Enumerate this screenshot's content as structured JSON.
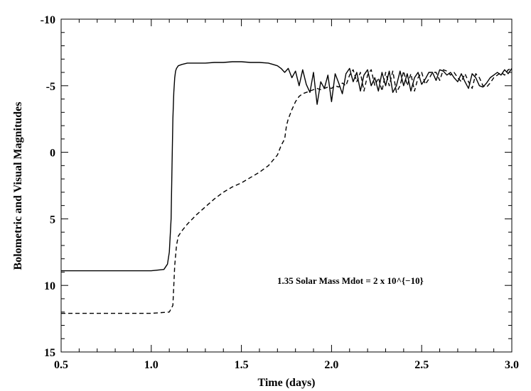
{
  "chart_data": {
    "type": "line",
    "title": "",
    "xlabel": "Time (days)",
    "ylabel": "Bolometric and Visual Magnitudes",
    "xlim": [
      0.5,
      3.0
    ],
    "ylim": [
      15,
      -10
    ],
    "y_inverted": true,
    "grid": false,
    "x_ticks": [
      "0.5",
      "1.0",
      "1.5",
      "2.0",
      "2.5",
      "3.0"
    ],
    "y_ticks": [
      "-10",
      "-5",
      "0",
      "5",
      "10",
      "15"
    ],
    "annotation": "1.35 Solar Mass  Mdot = 2 x 10^{−10}",
    "series": [
      {
        "style": "solid",
        "x": [
          0.5,
          0.8,
          1.0,
          1.07,
          1.09,
          1.1,
          1.11,
          1.115,
          1.12,
          1.125,
          1.13,
          1.135,
          1.14,
          1.15,
          1.17,
          1.2,
          1.25,
          1.3,
          1.35,
          1.4,
          1.45,
          1.5,
          1.55,
          1.6,
          1.65,
          1.7,
          1.72,
          1.74,
          1.76,
          1.78,
          1.8,
          1.82,
          1.84,
          1.86,
          1.88,
          1.9,
          1.92,
          1.94,
          1.96,
          1.98,
          2.0,
          2.02,
          2.04,
          2.06,
          2.08,
          2.1,
          2.12,
          2.14,
          2.16,
          2.18,
          2.2,
          2.22,
          2.24,
          2.26,
          2.28,
          2.3,
          2.32,
          2.34,
          2.36,
          2.38,
          2.4,
          2.42,
          2.44,
          2.46,
          2.48,
          2.5,
          2.52,
          2.54,
          2.56,
          2.58,
          2.6,
          2.62,
          2.64,
          2.66,
          2.68,
          2.7,
          2.72,
          2.74,
          2.76,
          2.78,
          2.8,
          2.82,
          2.84,
          2.86,
          2.88,
          2.9,
          2.92,
          2.94,
          2.96,
          2.98,
          3.0
        ],
        "y": [
          8.9,
          8.9,
          8.9,
          8.8,
          8.4,
          7.5,
          5.0,
          1.0,
          -2.5,
          -4.5,
          -5.6,
          -6.1,
          -6.3,
          -6.5,
          -6.6,
          -6.7,
          -6.7,
          -6.7,
          -6.75,
          -6.75,
          -6.8,
          -6.8,
          -6.75,
          -6.75,
          -6.7,
          -6.5,
          -6.3,
          -6.0,
          -6.3,
          -5.6,
          -6.1,
          -5.0,
          -6.2,
          -5.1,
          -4.5,
          -6.0,
          -3.6,
          -5.3,
          -4.8,
          -5.8,
          -3.8,
          -5.9,
          -5.2,
          -4.4,
          -5.9,
          -6.3,
          -5.3,
          -6.0,
          -4.6,
          -5.8,
          -6.2,
          -5.0,
          -5.6,
          -4.6,
          -6.0,
          -5.0,
          -6.1,
          -4.5,
          -5.0,
          -6.1,
          -5.0,
          -5.9,
          -4.6,
          -5.6,
          -6.0,
          -5.1,
          -5.5,
          -6.0,
          -6.0,
          -5.4,
          -6.2,
          -6.1,
          -5.8,
          -6.0,
          -5.6,
          -5.3,
          -5.9,
          -5.3,
          -4.8,
          -5.9,
          -5.6,
          -5.0,
          -4.9,
          -5.2,
          -5.6,
          -5.8,
          -6.0,
          -5.8,
          -6.2,
          -5.9,
          -6.3
        ]
      },
      {
        "style": "dashed",
        "x": [
          0.5,
          0.8,
          1.0,
          1.1,
          1.12,
          1.13,
          1.14,
          1.15,
          1.17,
          1.2,
          1.25,
          1.3,
          1.35,
          1.4,
          1.45,
          1.5,
          1.55,
          1.6,
          1.65,
          1.7,
          1.72,
          1.74,
          1.75,
          1.76,
          1.78,
          1.8,
          1.82,
          1.84,
          1.86,
          1.88,
          1.9,
          1.92,
          1.94,
          1.96,
          1.98,
          2.0,
          2.02,
          2.04,
          2.06,
          2.08,
          2.1,
          2.12,
          2.14,
          2.16,
          2.18,
          2.2,
          2.22,
          2.24,
          2.26,
          2.28,
          2.3,
          2.32,
          2.34,
          2.36,
          2.38,
          2.4,
          2.42,
          2.44,
          2.46,
          2.48,
          2.5,
          2.52,
          2.54,
          2.56,
          2.58,
          2.6,
          2.62,
          2.64,
          2.66,
          2.68,
          2.7,
          2.72,
          2.74,
          2.76,
          2.78,
          2.8,
          2.82,
          2.84,
          2.86,
          2.88,
          2.9,
          2.92,
          2.94,
          2.96,
          2.98,
          3.0
        ],
        "y": [
          12.1,
          12.1,
          12.1,
          12.0,
          11.5,
          8.5,
          7.0,
          6.3,
          5.9,
          5.4,
          4.7,
          4.1,
          3.5,
          3.0,
          2.6,
          2.3,
          1.9,
          1.5,
          1.0,
          0.2,
          -0.5,
          -1.0,
          -2.0,
          -2.5,
          -3.2,
          -3.8,
          -4.2,
          -4.4,
          -4.5,
          -4.6,
          -4.7,
          -4.8,
          -4.7,
          -4.8,
          -4.9,
          -4.8,
          -5.0,
          -4.9,
          -5.2,
          -5.0,
          -5.8,
          -6.2,
          -5.3,
          -6.0,
          -4.6,
          -5.8,
          -6.2,
          -5.0,
          -5.6,
          -4.6,
          -6.0,
          -5.0,
          -6.1,
          -4.5,
          -5.0,
          -6.1,
          -5.0,
          -5.9,
          -4.6,
          -5.6,
          -6.0,
          -5.1,
          -5.5,
          -6.0,
          -6.0,
          -5.4,
          -6.2,
          -6.1,
          -5.8,
          -6.0,
          -5.6,
          -5.3,
          -5.9,
          -5.3,
          -4.8,
          -5.9,
          -5.6,
          -5.0,
          -4.9,
          -5.2,
          -5.6,
          -5.8,
          -6.0,
          -5.8,
          -6.2,
          -6.3
        ]
      }
    ]
  }
}
